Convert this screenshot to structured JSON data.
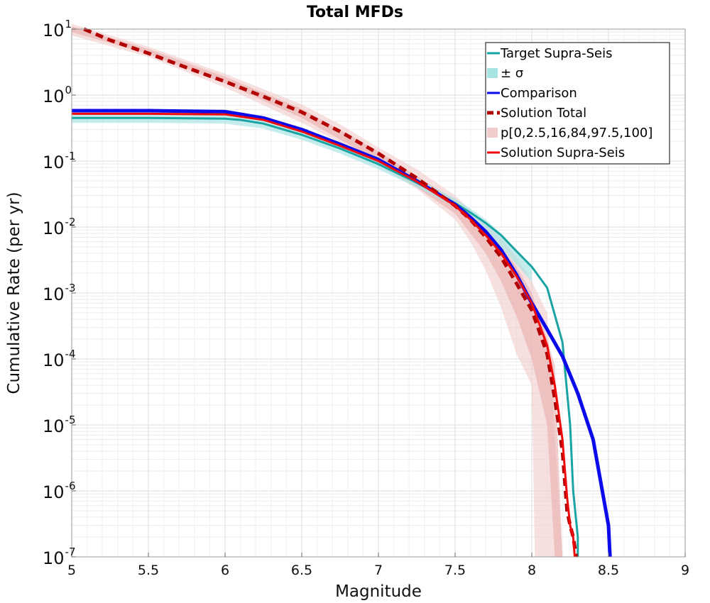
{
  "chart_data": {
    "type": "line",
    "title": "Total MFDs",
    "xlabel": "Magnitude",
    "ylabel": "Cumulative Rate (per yr)",
    "xlim": [
      5,
      9
    ],
    "ylim": [
      1e-07,
      10
    ],
    "yscale": "log",
    "grid": true,
    "legend_position": "top-right",
    "x_ticks": [
      "5",
      "5.5",
      "6",
      "6.5",
      "7",
      "7.5",
      "8",
      "8.5",
      "9"
    ],
    "y_ticks": [
      {
        "base": "10",
        "exp": "1",
        "value": 10
      },
      {
        "base": "10",
        "exp": "0",
        "value": 1
      },
      {
        "base": "10",
        "exp": "-1",
        "value": 0.1
      },
      {
        "base": "10",
        "exp": "-2",
        "value": 0.01
      },
      {
        "base": "10",
        "exp": "-3",
        "value": 0.001
      },
      {
        "base": "10",
        "exp": "-4",
        "value": 0.0001
      },
      {
        "base": "10",
        "exp": "-5",
        "value": 1e-05
      },
      {
        "base": "10",
        "exp": "-6",
        "value": 1e-06
      },
      {
        "base": "10",
        "exp": "-7",
        "value": 1e-07
      }
    ],
    "bands": [
      {
        "name": "p[0,2.5,16,84,97.5,100]",
        "color": "#f2cccc",
        "opacity": 0.6,
        "x": [
          5.0,
          5.5,
          6.0,
          6.5,
          6.75,
          7.0,
          7.25,
          7.5,
          7.6,
          7.7,
          7.8,
          7.9,
          8.0,
          8.02,
          8.1,
          8.2
        ],
        "lower": [
          8.0,
          3.8,
          1.3,
          0.38,
          0.19,
          0.085,
          0.038,
          0.013,
          0.006,
          0.0022,
          0.0006,
          0.00012,
          4e-05,
          1e-07,
          1e-07,
          1e-07
        ],
        "upper": [
          12.0,
          5.4,
          2.1,
          0.72,
          0.36,
          0.16,
          0.075,
          0.03,
          0.018,
          0.011,
          0.0068,
          0.0035,
          0.0015,
          0.0012,
          0.0005,
          1e-07
        ]
      },
      {
        "name": "p[0,2.5,16,84,97.5,100]",
        "color": "#eaaaaa",
        "opacity": 0.55,
        "x": [
          5.0,
          5.5,
          6.0,
          6.5,
          7.0,
          7.5,
          7.7,
          7.8,
          7.9,
          8.0,
          8.1,
          8.15,
          8.2
        ],
        "lower": [
          9.0,
          4.2,
          1.5,
          0.45,
          0.1,
          0.016,
          0.004,
          0.0015,
          0.00045,
          0.0001,
          1e-05,
          1e-07,
          1e-07
        ],
        "upper": [
          11.0,
          5.0,
          1.9,
          0.62,
          0.14,
          0.025,
          0.009,
          0.005,
          0.0025,
          0.001,
          0.0002,
          8e-05,
          1e-07
        ]
      },
      {
        "name": "± σ",
        "color": "#a6e3e3",
        "opacity": 0.65,
        "x": [
          5.0,
          5.5,
          6.0,
          6.25,
          6.5,
          6.75,
          7.0,
          7.25,
          7.5,
          7.6,
          7.7,
          7.8,
          7.9,
          8.0
        ],
        "lower": [
          0.38,
          0.38,
          0.37,
          0.31,
          0.21,
          0.13,
          0.075,
          0.04,
          0.02,
          0.013,
          0.0085,
          0.005,
          0.0027,
          0.0015
        ],
        "upper": [
          0.52,
          0.52,
          0.5,
          0.43,
          0.3,
          0.18,
          0.105,
          0.055,
          0.027,
          0.019,
          0.013,
          0.008,
          0.0045,
          0.0026
        ]
      }
    ],
    "series": [
      {
        "name": "Target Supra-Seis",
        "color": "#1aa3a3",
        "width": 3,
        "dash": "",
        "x": [
          5.0,
          5.5,
          6.0,
          6.1,
          6.25,
          6.5,
          6.75,
          7.0,
          7.25,
          7.5,
          7.6,
          7.7,
          7.8,
          7.9,
          8.0,
          8.1,
          8.2,
          8.25,
          8.27,
          8.3,
          8.3
        ],
        "y": [
          0.45,
          0.45,
          0.44,
          0.42,
          0.37,
          0.25,
          0.155,
          0.09,
          0.047,
          0.023,
          0.0165,
          0.0115,
          0.0075,
          0.0043,
          0.0025,
          0.0012,
          0.00018,
          1e-05,
          1e-06,
          2e-07,
          1e-07
        ]
      },
      {
        "name": "Comparison",
        "color": "#0a0aeb",
        "width": 5,
        "dash": "",
        "x": [
          5.0,
          5.5,
          6.0,
          6.25,
          6.5,
          6.75,
          7.0,
          7.25,
          7.5,
          7.6,
          7.7,
          7.8,
          7.9,
          8.0,
          8.1,
          8.2,
          8.3,
          8.4,
          8.5,
          8.51
        ],
        "y": [
          0.58,
          0.58,
          0.56,
          0.45,
          0.3,
          0.18,
          0.105,
          0.05,
          0.022,
          0.014,
          0.0085,
          0.0045,
          0.0019,
          0.0007,
          0.00028,
          0.00011,
          3e-05,
          6e-06,
          3e-07,
          1e-07
        ]
      },
      {
        "name": "Solution Total",
        "color": "#b20000",
        "width": 5,
        "dash": "11,7",
        "x": [
          5.08,
          5.25,
          5.5,
          5.75,
          6.0,
          6.25,
          6.5,
          6.75,
          7.0,
          7.25,
          7.5,
          7.6,
          7.7,
          7.8,
          7.9,
          8.0,
          8.1,
          8.15,
          8.2,
          8.23,
          8.25,
          8.27,
          8.29
        ],
        "y": [
          10,
          6.8,
          4.3,
          2.6,
          1.6,
          0.95,
          0.55,
          0.28,
          0.13,
          0.055,
          0.021,
          0.013,
          0.007,
          0.0035,
          0.0014,
          0.00055,
          0.00012,
          2.5e-05,
          4e-06,
          5e-07,
          3e-07,
          2e-07,
          1e-07
        ]
      },
      {
        "name": "Solution Supra-Seis",
        "color": "#ee0a0a",
        "width": 3,
        "dash": "",
        "x": [
          5.0,
          5.5,
          6.0,
          6.25,
          6.5,
          6.75,
          7.0,
          7.25,
          7.5,
          7.6,
          7.7,
          7.8,
          7.9,
          8.0,
          8.1,
          8.15,
          8.2,
          8.23,
          8.25,
          8.27,
          8.28
        ],
        "y": [
          0.52,
          0.52,
          0.51,
          0.42,
          0.28,
          0.17,
          0.1,
          0.049,
          0.021,
          0.013,
          0.0075,
          0.004,
          0.0018,
          0.0007,
          0.00016,
          4e-05,
          6e-06,
          8e-07,
          3e-07,
          2e-07,
          1e-07
        ]
      }
    ],
    "legend": [
      {
        "label": "Target Supra-Seis",
        "kind": "line",
        "color": "#1aa3a3",
        "dash": ""
      },
      {
        "label": "± σ",
        "kind": "patch",
        "color": "#a6e3e3",
        "dash": ""
      },
      {
        "label": "Comparison",
        "kind": "line",
        "color": "#0a0aeb",
        "dash": ""
      },
      {
        "label": "Solution Total",
        "kind": "line",
        "color": "#b20000",
        "dash": "9,5"
      },
      {
        "label": "p[0,2.5,16,84,97.5,100]",
        "kind": "patch",
        "color": "#f2cccc",
        "dash": ""
      },
      {
        "label": "Solution Supra-Seis",
        "kind": "line",
        "color": "#ee0a0a",
        "dash": ""
      }
    ]
  }
}
